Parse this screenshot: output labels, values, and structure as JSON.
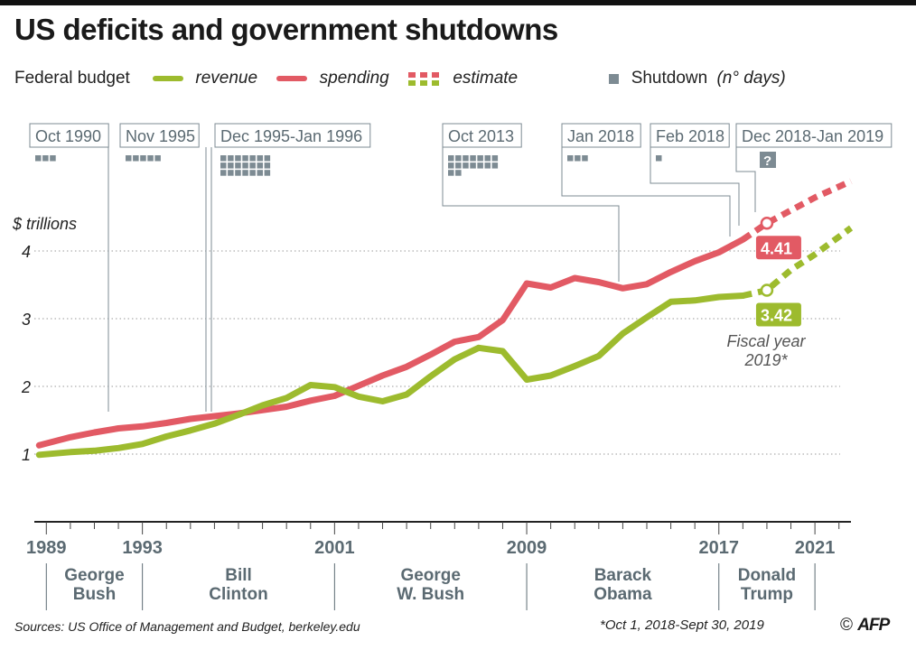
{
  "title": "US deficits and government shutdowns",
  "legend": {
    "label": "Federal budget",
    "revenue": "revenue",
    "spending": "spending",
    "estimate": "estimate",
    "shutdown_label": "Shutdown",
    "shutdown_unit": "(n° days)"
  },
  "colors": {
    "revenue": "#9dbb2e",
    "spending": "#e25a64",
    "shutdown": "#7d8b93",
    "grid": "#9a9a9a"
  },
  "chart_data": {
    "type": "line",
    "ylabel": "$ trillions",
    "ylim": [
      0,
      5
    ],
    "yticks": [
      1,
      2,
      3,
      4
    ],
    "xlim": [
      1988.5,
      2022.5
    ],
    "xticks": [
      1989,
      1993,
      2001,
      2009,
      2017,
      2021
    ],
    "series": [
      {
        "name": "spending",
        "x": [
          1988.7,
          1990,
          1991,
          1992,
          1993,
          1994,
          1995,
          1996,
          1997,
          1998,
          1999,
          2000,
          2001,
          2002,
          2003,
          2004,
          2005,
          2006,
          2007,
          2008,
          2009,
          2010,
          2011,
          2012,
          2013,
          2014,
          2015,
          2016,
          2017,
          2018
        ],
        "values": [
          1.13,
          1.25,
          1.32,
          1.38,
          1.41,
          1.46,
          1.52,
          1.56,
          1.6,
          1.65,
          1.7,
          1.79,
          1.86,
          2.01,
          2.16,
          2.29,
          2.47,
          2.66,
          2.73,
          2.98,
          3.52,
          3.46,
          3.6,
          3.54,
          3.45,
          3.51,
          3.69,
          3.85,
          3.98,
          4.17
        ]
      },
      {
        "name": "revenue",
        "x": [
          1988.7,
          1990,
          1991,
          1992,
          1993,
          1994,
          1995,
          1996,
          1997,
          1998,
          1999,
          2000,
          2001,
          2002,
          2003,
          2004,
          2005,
          2006,
          2007,
          2008,
          2009,
          2010,
          2011,
          2012,
          2013,
          2014,
          2015,
          2016,
          2017,
          2018
        ],
        "values": [
          0.99,
          1.03,
          1.05,
          1.09,
          1.15,
          1.26,
          1.35,
          1.45,
          1.58,
          1.72,
          1.83,
          2.02,
          1.99,
          1.85,
          1.78,
          1.88,
          2.15,
          2.4,
          2.57,
          2.52,
          2.1,
          2.16,
          2.3,
          2.45,
          2.78,
          3.02,
          3.25,
          3.27,
          3.32,
          3.34
        ]
      },
      {
        "name": "spending estimate",
        "x": [
          2018,
          2019,
          2020,
          2021,
          2022.5
        ],
        "values": [
          4.17,
          4.41,
          4.6,
          4.79,
          5.03
        ]
      },
      {
        "name": "revenue estimate",
        "x": [
          2018,
          2019,
          2020,
          2021,
          2022.5
        ],
        "values": [
          3.34,
          3.42,
          3.72,
          3.95,
          4.34
        ]
      }
    ],
    "highlight": [
      {
        "series": "spending",
        "x": 2019,
        "value": 4.41,
        "label": "4.41"
      },
      {
        "series": "revenue",
        "x": 2019,
        "value": 3.42,
        "label": "3.42"
      }
    ],
    "estimate_note": [
      "Fiscal year",
      "2019*"
    ],
    "shutdowns": [
      {
        "label": "Oct 1990",
        "days": 3,
        "x": 1990.8
      },
      {
        "label": "Nov 1995",
        "days": 5,
        "x": 1995.9
      },
      {
        "label": "Dec 1995-Jan 1996",
        "days": 21,
        "x": 1996.0
      },
      {
        "label": "Oct 2013",
        "days": 16,
        "x": 2013.8
      },
      {
        "label": "Jan 2018",
        "days": 3,
        "x": 2018.1
      },
      {
        "label": "Feb 2018",
        "days": 1,
        "x": 2018.2
      },
      {
        "label": "Dec 2018-Jan 2019",
        "days": null,
        "unknown": "?",
        "x": 2018.95
      }
    ],
    "presidents": [
      {
        "name": [
          "George",
          "Bush"
        ],
        "start": 1989,
        "end": 1993
      },
      {
        "name": [
          "Bill",
          "Clinton"
        ],
        "start": 1993,
        "end": 2001
      },
      {
        "name": [
          "George",
          "W. Bush"
        ],
        "start": 2001,
        "end": 2009
      },
      {
        "name": [
          "Barack",
          "Obama"
        ],
        "start": 2009,
        "end": 2017
      },
      {
        "name": [
          "Donald",
          "Trump"
        ],
        "start": 2017,
        "end": 2021
      }
    ]
  },
  "footer": {
    "sources": "Sources: US Office of Management and Budget, berkeley.edu",
    "note": "*Oct 1, 2018-Sept 30, 2019",
    "copyright": "©",
    "agency": "AFP"
  }
}
